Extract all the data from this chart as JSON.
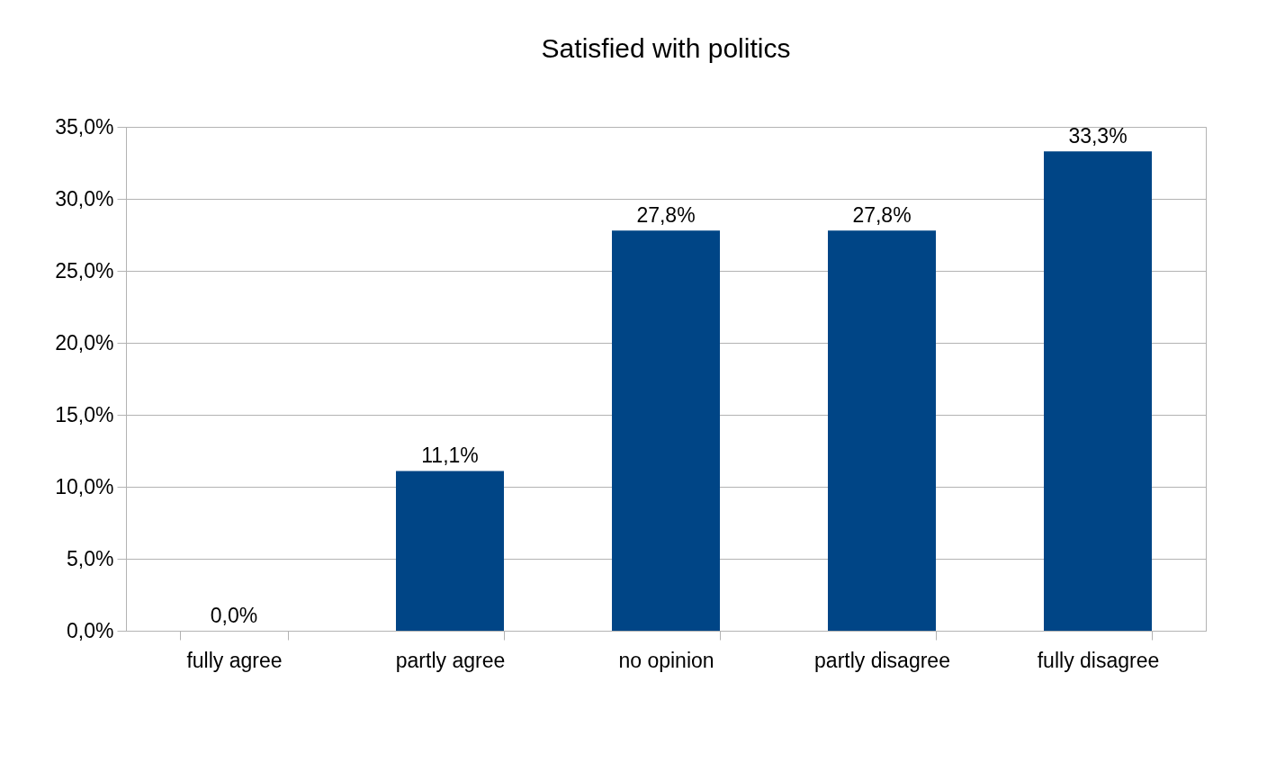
{
  "chart_data": {
    "type": "bar",
    "title": "Satisfied with politics",
    "categories": [
      "fully agree",
      "partly agree",
      "no opinion",
      "partly disagree",
      "fully disagree"
    ],
    "values": [
      0.0,
      11.1,
      27.8,
      27.8,
      33.3
    ],
    "value_labels": [
      "0,0%",
      "11,1%",
      "27,8%",
      "27,8%",
      "33,3%"
    ],
    "color": "#004586",
    "ylim": [
      0,
      35
    ],
    "yticks": [
      {
        "value": 0,
        "label": "0,0%"
      },
      {
        "value": 5,
        "label": "5,0%"
      },
      {
        "value": 10,
        "label": "10,0%"
      },
      {
        "value": 15,
        "label": "15,0%"
      },
      {
        "value": 20,
        "label": "20,0%"
      },
      {
        "value": 25,
        "label": "25,0%"
      },
      {
        "value": 30,
        "label": "30,0%"
      },
      {
        "value": 35,
        "label": "35,0%"
      }
    ],
    "grid": "y"
  }
}
